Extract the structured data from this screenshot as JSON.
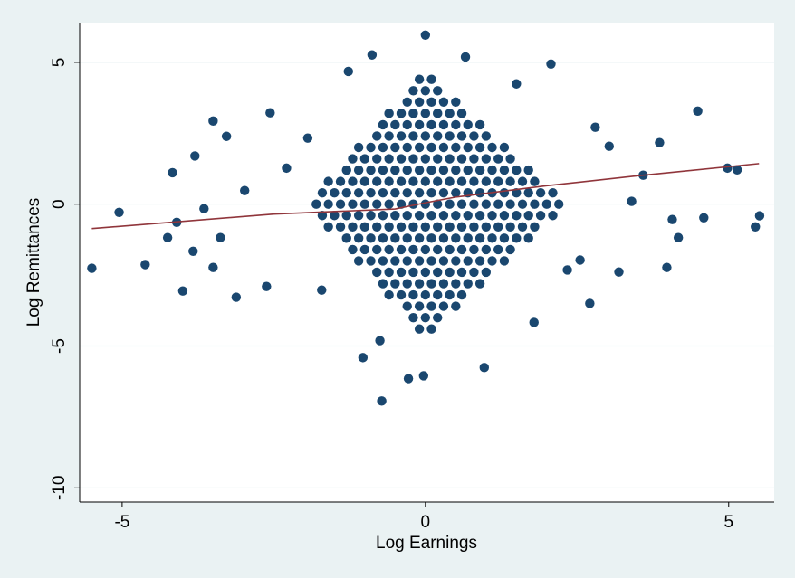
{
  "chart_data": {
    "type": "scatter",
    "xlabel": "Log Earnings",
    "ylabel": "Log Remittances",
    "xlim": [
      -5.7,
      5.75
    ],
    "xticks": [
      -5,
      0,
      5
    ],
    "ylim": [
      -10.5,
      6.4
    ],
    "yticks": [
      5,
      0,
      -5,
      -10
    ],
    "grid": true,
    "series": [
      {
        "type": "scatter",
        "color": "#1a476f",
        "x": [
          -5.5,
          -5.05,
          -4.62,
          -4.25,
          -4.0,
          -3.83,
          -3.8,
          -3.5,
          -3.5,
          -3.12,
          -2.56,
          -2.62,
          -1.27,
          -0.88,
          -1.03,
          -0.72,
          -0.28,
          0,
          -0.03,
          2.07,
          2.71,
          3.19,
          3.98,
          4.49,
          4.17,
          4.59,
          4.98,
          5.14,
          5.44,
          5.51,
          4.07,
          3.4,
          3.59,
          3.86,
          3.03,
          2.8,
          2.55,
          2.34,
          1.79,
          1.5,
          0.66,
          0.97,
          -0.75,
          -1.71,
          -1.94,
          -2.29,
          -2.98,
          -3.28,
          -4.17,
          -4.1,
          -3.65,
          -3.38,
          -0.1,
          0.1,
          -0.2,
          0,
          0.2,
          -0.3,
          -0.1,
          0.1,
          0.3,
          0.5,
          -0.6,
          -0.4,
          -0.2,
          0,
          0.2,
          0.4,
          0.6,
          -0.7,
          -0.5,
          -0.3,
          -0.1,
          0.1,
          0.3,
          0.5,
          0.7,
          0.9,
          -0.8,
          -0.6,
          -0.4,
          -0.2,
          0,
          0.2,
          0.4,
          0.6,
          0.8,
          1,
          -1.1,
          -0.9,
          -0.7,
          -0.5,
          -0.3,
          -0.1,
          0.1,
          0.3,
          0.5,
          0.7,
          0.9,
          1.1,
          1.3,
          -1.2,
          -1,
          -0.8,
          -0.6,
          -0.4,
          -0.2,
          0,
          0.2,
          0.4,
          0.6,
          0.8,
          1,
          1.2,
          1.4,
          -1.3,
          -1.1,
          -0.9,
          -0.7,
          -0.5,
          -0.3,
          -0.1,
          0.1,
          0.3,
          0.5,
          0.7,
          0.9,
          1.1,
          1.3,
          1.5,
          1.7,
          -1.6,
          -1.4,
          -1.2,
          -1,
          -0.8,
          -0.6,
          -0.4,
          -0.2,
          0,
          0.2,
          0.4,
          0.6,
          0.8,
          1,
          1.2,
          1.4,
          1.6,
          1.8,
          -1.7,
          -1.5,
          -1.3,
          -1.1,
          -0.9,
          -0.7,
          -0.5,
          -0.3,
          -0.1,
          0.1,
          0.3,
          0.5,
          0.7,
          0.9,
          1.1,
          1.3,
          1.5,
          1.7,
          1.9,
          2.1,
          -1.8,
          -1.6,
          -1.4,
          -1.2,
          -1,
          -0.8,
          -0.6,
          -0.4,
          -0.2,
          0,
          0.2,
          0.4,
          0.6,
          0.8,
          1,
          1.2,
          1.4,
          1.6,
          1.8,
          2,
          2.2,
          -1.7,
          -1.5,
          -1.3,
          -1.1,
          -0.9,
          -0.7,
          -0.5,
          -0.3,
          -0.1,
          0.1,
          0.3,
          0.5,
          0.7,
          0.9,
          1.1,
          1.3,
          1.5,
          1.7,
          1.9,
          2.1,
          -1.6,
          -1.4,
          -1.2,
          -1,
          -0.8,
          -0.6,
          -0.4,
          -0.2,
          0,
          0.2,
          0.4,
          0.6,
          0.8,
          1,
          1.2,
          1.4,
          1.6,
          1.8,
          -1.3,
          -1.1,
          -0.9,
          -0.7,
          -0.5,
          -0.3,
          -0.1,
          0.1,
          0.3,
          0.5,
          0.7,
          0.9,
          1.1,
          1.3,
          1.5,
          1.7,
          -1.2,
          -1,
          -0.8,
          -0.6,
          -0.4,
          -0.2,
          0,
          0.2,
          0.4,
          0.6,
          0.8,
          1,
          1.2,
          1.4,
          -1.1,
          -0.9,
          -0.7,
          -0.5,
          -0.3,
          -0.1,
          0.1,
          0.3,
          0.5,
          0.7,
          0.9,
          1.1,
          1.3,
          -0.8,
          -0.6,
          -0.4,
          -0.2,
          0,
          0.2,
          0.4,
          0.6,
          0.8,
          1,
          -0.7,
          -0.5,
          -0.3,
          -0.1,
          0.1,
          0.3,
          0.5,
          0.7,
          0.9,
          -0.6,
          -0.4,
          -0.2,
          0,
          0.2,
          0.4,
          0.6,
          -0.3,
          -0.1,
          0.1,
          0.3,
          0.5,
          -0.2,
          0,
          0.2,
          -0.1,
          0.1
        ],
        "values": [
          -2.26,
          -0.29,
          -2.13,
          -1.18,
          -3.06,
          -1.66,
          1.7,
          2.93,
          -2.23,
          -3.28,
          3.22,
          -2.9,
          4.68,
          5.26,
          -5.41,
          -6.94,
          -6.15,
          5.96,
          -6.05,
          4.94,
          -3.5,
          -2.39,
          -2.23,
          3.28,
          -1.18,
          -0.48,
          1.27,
          1.21,
          -0.8,
          -0.41,
          -0.54,
          0.1,
          1.02,
          2.17,
          2.04,
          2.71,
          -1.97,
          -2.32,
          -4.17,
          4.24,
          5.19,
          -5.76,
          -4.81,
          -3.03,
          2.33,
          1.27,
          0.48,
          2.39,
          1.11,
          -0.64,
          -0.16,
          -1.18,
          4.4,
          4.4,
          4,
          4,
          4,
          3.6,
          3.6,
          3.6,
          3.6,
          3.6,
          3.2,
          3.2,
          3.2,
          3.2,
          3.2,
          3.2,
          3.2,
          2.8,
          2.8,
          2.8,
          2.8,
          2.8,
          2.8,
          2.8,
          2.8,
          2.8,
          2.4,
          2.4,
          2.4,
          2.4,
          2.4,
          2.4,
          2.4,
          2.4,
          2.4,
          2.4,
          2,
          2,
          2,
          2,
          2,
          2,
          2,
          2,
          2,
          2,
          2,
          2,
          2,
          1.6,
          1.6,
          1.6,
          1.6,
          1.6,
          1.6,
          1.6,
          1.6,
          1.6,
          1.6,
          1.6,
          1.6,
          1.6,
          1.6,
          1.2,
          1.2,
          1.2,
          1.2,
          1.2,
          1.2,
          1.2,
          1.2,
          1.2,
          1.2,
          1.2,
          1.2,
          1.2,
          1.2,
          1.2,
          1.2,
          0.8,
          0.8,
          0.8,
          0.8,
          0.8,
          0.8,
          0.8,
          0.8,
          0.8,
          0.8,
          0.8,
          0.8,
          0.8,
          0.8,
          0.8,
          0.8,
          0.8,
          0.8,
          0.4,
          0.4,
          0.4,
          0.4,
          0.4,
          0.4,
          0.4,
          0.4,
          0.4,
          0.4,
          0.4,
          0.4,
          0.4,
          0.4,
          0.4,
          0.4,
          0.4,
          0.4,
          0.4,
          0.4,
          0,
          0,
          0,
          0,
          0,
          0,
          0,
          0,
          0,
          0,
          0,
          0,
          0,
          0,
          0,
          0,
          0,
          0,
          0,
          0,
          0,
          -0.4,
          -0.4,
          -0.4,
          -0.4,
          -0.4,
          -0.4,
          -0.4,
          -0.4,
          -0.4,
          -0.4,
          -0.4,
          -0.4,
          -0.4,
          -0.4,
          -0.4,
          -0.4,
          -0.4,
          -0.4,
          -0.4,
          -0.4,
          -0.8,
          -0.8,
          -0.8,
          -0.8,
          -0.8,
          -0.8,
          -0.8,
          -0.8,
          -0.8,
          -0.8,
          -0.8,
          -0.8,
          -0.8,
          -0.8,
          -0.8,
          -0.8,
          -0.8,
          -0.8,
          -1.2,
          -1.2,
          -1.2,
          -1.2,
          -1.2,
          -1.2,
          -1.2,
          -1.2,
          -1.2,
          -1.2,
          -1.2,
          -1.2,
          -1.2,
          -1.2,
          -1.2,
          -1.2,
          -1.6,
          -1.6,
          -1.6,
          -1.6,
          -1.6,
          -1.6,
          -1.6,
          -1.6,
          -1.6,
          -1.6,
          -1.6,
          -1.6,
          -1.6,
          -1.6,
          -2,
          -2,
          -2,
          -2,
          -2,
          -2,
          -2,
          -2,
          -2,
          -2,
          -2,
          -2,
          -2,
          -2.4,
          -2.4,
          -2.4,
          -2.4,
          -2.4,
          -2.4,
          -2.4,
          -2.4,
          -2.4,
          -2.4,
          -2.8,
          -2.8,
          -2.8,
          -2.8,
          -2.8,
          -2.8,
          -2.8,
          -2.8,
          -2.8,
          -3.2,
          -3.2,
          -3.2,
          -3.2,
          -3.2,
          -3.2,
          -3.2,
          -3.6,
          -3.6,
          -3.6,
          -3.6,
          -3.6,
          -4,
          -4,
          -4,
          -4.4,
          -4.4
        ]
      },
      {
        "type": "line",
        "color": "#90353b",
        "x": [
          -5.5,
          -2.5,
          -0.5,
          0,
          0.5,
          2,
          3.5,
          5.5
        ],
        "values": [
          -0.86,
          -0.35,
          -0.17,
          0.05,
          0.25,
          0.65,
          1.0,
          1.43
        ]
      }
    ]
  }
}
